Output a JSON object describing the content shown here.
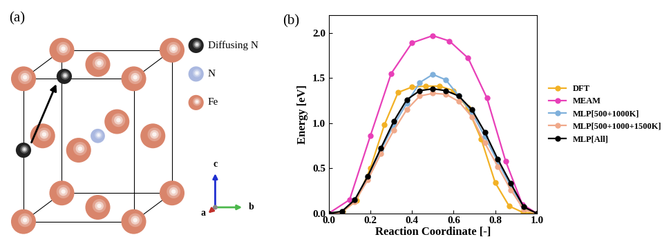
{
  "diagram": {
    "panel_label": "(a)",
    "legend": [
      {
        "label": "Diffusing N"
      },
      {
        "label": "N"
      },
      {
        "label": "Fe"
      }
    ],
    "axes": [
      "a",
      "b",
      "c"
    ]
  },
  "chart_data": {
    "type": "line",
    "title": "(b)",
    "x_label": "Reaction Coordinate [-]",
    "y_label": "Energy [eV]",
    "xlim": [
      0,
      1.0
    ],
    "xticks": [
      {
        "value": 0,
        "label": "0.0"
      },
      {
        "value": 0.2,
        "label": "0.2"
      },
      {
        "value": 0.4,
        "label": "0.4"
      },
      {
        "value": 0.6,
        "label": "0.6"
      },
      {
        "value": 0.8,
        "label": "0.8"
      },
      {
        "value": 1.0,
        "label": "1.0"
      }
    ],
    "ylim": [
      0,
      2.2
    ],
    "yticks": [
      {
        "value": 0,
        "label": "0.0"
      },
      {
        "value": 0.5,
        "label": "0.5"
      },
      {
        "value": 1.0,
        "label": "1.0"
      },
      {
        "value": 1.5,
        "label": "1.5"
      },
      {
        "value": 2.0,
        "label": "2.0"
      }
    ],
    "legend": "right",
    "series": [
      {
        "name": "DFT",
        "color": "#f2b125",
        "marker": "o",
        "x": [
          0,
          0.067,
          0.133,
          0.2,
          0.267,
          0.333,
          0.4,
          0.467,
          0.533,
          0.6,
          0.667,
          0.733,
          0.8,
          0.867,
          0.933,
          1.0
        ],
        "values": [
          0,
          0.02,
          0.14,
          0.5,
          0.98,
          1.34,
          1.4,
          1.41,
          1.41,
          1.36,
          1.17,
          0.82,
          0.34,
          0.08,
          0.01,
          0
        ]
      },
      {
        "name": "MEAM",
        "color": "#e83fb8",
        "marker": "o",
        "x": [
          0,
          0.1,
          0.2,
          0.3,
          0.4,
          0.5,
          0.58,
          0.67,
          0.76,
          0.85,
          0.93,
          1.0
        ],
        "values": [
          0,
          0.15,
          0.86,
          1.55,
          1.89,
          1.97,
          1.91,
          1.72,
          1.28,
          0.58,
          0.1,
          0
        ]
      },
      {
        "name": "MLP[500+1000K]",
        "color": "#7fb0db",
        "marker": "o",
        "x": [
          0,
          0.0625,
          0.125,
          0.1875,
          0.25,
          0.3125,
          0.375,
          0.4375,
          0.5,
          0.5625,
          0.625,
          0.6875,
          0.75,
          0.8125,
          0.875,
          0.9375,
          1.0
        ],
        "values": [
          0,
          0.02,
          0.15,
          0.4,
          0.7,
          0.98,
          1.22,
          1.45,
          1.54,
          1.48,
          1.3,
          1.12,
          0.85,
          0.57,
          0.3,
          0.06,
          0
        ]
      },
      {
        "name": "MLP[500+1000+1500K]",
        "color": "#f0a98a",
        "marker": "o",
        "x": [
          0,
          0.0625,
          0.125,
          0.1875,
          0.25,
          0.3125,
          0.375,
          0.4375,
          0.5,
          0.5625,
          0.625,
          0.6875,
          0.75,
          0.8125,
          0.875,
          0.9375,
          1.0
        ],
        "values": [
          0,
          0.01,
          0.13,
          0.37,
          0.66,
          0.92,
          1.15,
          1.3,
          1.33,
          1.32,
          1.24,
          1.07,
          0.78,
          0.52,
          0.26,
          0.04,
          0
        ]
      },
      {
        "name": "MLP[All]",
        "color": "#000000",
        "marker": "o",
        "x": [
          0,
          0.0625,
          0.125,
          0.1875,
          0.25,
          0.3125,
          0.375,
          0.4375,
          0.5,
          0.5625,
          0.625,
          0.6875,
          0.75,
          0.8125,
          0.875,
          0.9375,
          1.0
        ],
        "values": [
          0,
          0.02,
          0.15,
          0.41,
          0.72,
          1.02,
          1.26,
          1.36,
          1.38,
          1.36,
          1.3,
          1.15,
          0.9,
          0.6,
          0.33,
          0.07,
          0
        ]
      }
    ]
  }
}
